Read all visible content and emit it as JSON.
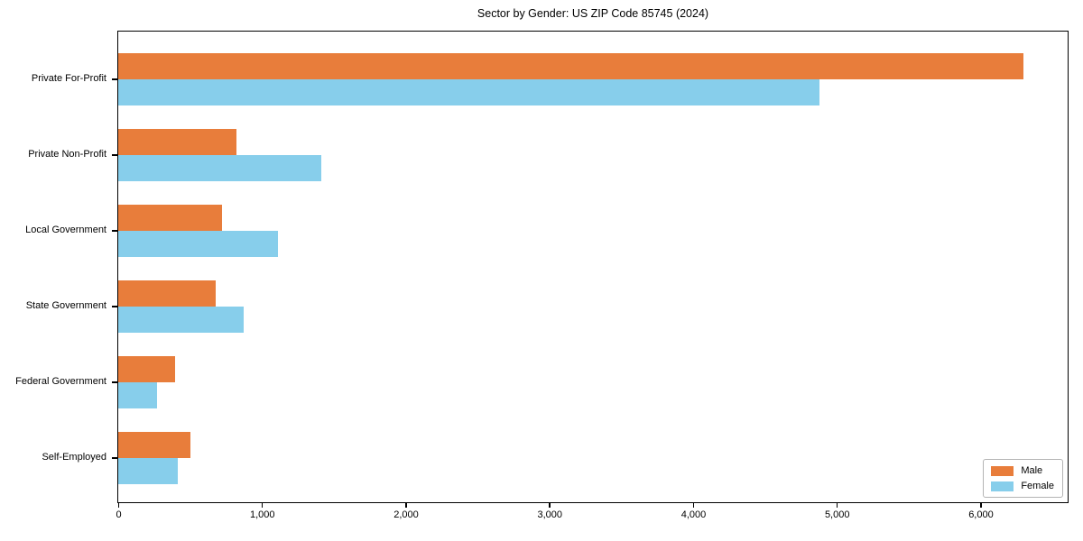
{
  "chart_data": {
    "type": "bar",
    "orientation": "horizontal",
    "title": "Sector by Gender: US ZIP Code 85745 (2024)",
    "categories": [
      "Private For-Profit",
      "Private Non-Profit",
      "Local Government",
      "State Government",
      "Federal Government",
      "Self-Employed"
    ],
    "series": [
      {
        "name": "Male",
        "color": "#e87d3b",
        "values": [
          6300,
          820,
          725,
          680,
          395,
          500
        ]
      },
      {
        "name": "Female",
        "color": "#87ceeb",
        "values": [
          4880,
          1415,
          1110,
          875,
          270,
          415
        ]
      }
    ],
    "xlabel": "",
    "ylabel": "",
    "xlim": [
      0,
      6600
    ],
    "x_ticks": [
      0,
      1000,
      2000,
      3000,
      4000,
      5000,
      6000
    ],
    "x_tick_labels": [
      "0",
      "1,000",
      "2,000",
      "3,000",
      "4,000",
      "5,000",
      "6,000"
    ],
    "legend": {
      "entries": [
        "Male",
        "Female"
      ],
      "position": "lower right"
    },
    "grid": false,
    "background_color": "#ffffff",
    "spine_color": "#000000"
  }
}
